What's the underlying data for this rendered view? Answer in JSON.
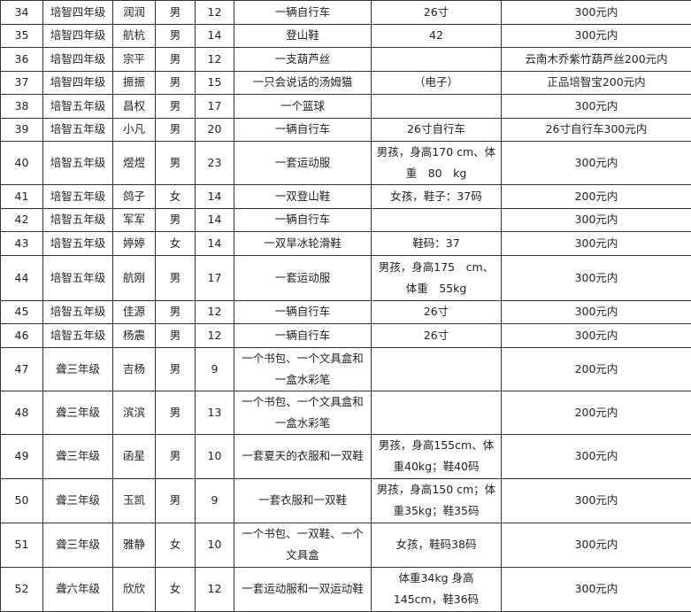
{
  "rows": [
    {
      "no": "34",
      "grade": "培智四年级",
      "name": "润润",
      "sex": "男",
      "age": "12",
      "wish": "一辆自行车",
      "note": "26寸",
      "budget": "300元内"
    },
    {
      "no": "35",
      "grade": "培智四年级",
      "name": "航杭",
      "sex": "男",
      "age": "14",
      "wish": "登山鞋",
      "note": "42",
      "budget": "300元内"
    },
    {
      "no": "36",
      "grade": "培智四年级",
      "name": "宗平",
      "sex": "男",
      "age": "12",
      "wish": "一支葫芦丝",
      "note": "",
      "budget": "云南木乔紫竹葫芦丝200元内"
    },
    {
      "no": "37",
      "grade": "培智四年级",
      "name": "振振",
      "sex": "男",
      "age": "15",
      "wish": "一只会说话的汤姆猫",
      "note": "（电子）",
      "budget": "正品培智宝200元内"
    },
    {
      "no": "38",
      "grade": "培智五年级",
      "name": "昌权",
      "sex": "男",
      "age": "17",
      "wish": "一个篮球",
      "note": "",
      "budget": "300元内"
    },
    {
      "no": "39",
      "grade": "培智五年级",
      "name": "小凡",
      "sex": "男",
      "age": "20",
      "wish": "一辆自行车",
      "note": "26寸自行车",
      "budget": "26寸自行车300元内"
    },
    {
      "no": "40",
      "grade": "培智五年级",
      "name": "煜煜",
      "sex": "男",
      "age": "23",
      "wish": "一套运动服",
      "note": "男孩，身高170 cm、体重　80　kg",
      "budget": "300元内",
      "h": 48
    },
    {
      "no": "41",
      "grade": "培智五年级",
      "name": "鸽子",
      "sex": "女",
      "age": "14",
      "wish": "一双登山鞋",
      "note": "女孩，鞋子：37码",
      "budget": "200元内"
    },
    {
      "no": "42",
      "grade": "培智五年级",
      "name": "军军",
      "sex": "男",
      "age": "14",
      "wish": "一辆自行车",
      "note": "",
      "budget": "300元内"
    },
    {
      "no": "43",
      "grade": "培智五年级",
      "name": "婷婷",
      "sex": "女",
      "age": "14",
      "wish": "一双旱冰轮滑鞋",
      "note": "鞋码：37",
      "budget": "300元内"
    },
    {
      "no": "44",
      "grade": "培智五年级",
      "name": "航刚",
      "sex": "男",
      "age": "17",
      "wish": "一套运动服",
      "note": "男孩，身高175　cm、体重　55kg",
      "budget": "300元内",
      "h": 51
    },
    {
      "no": "45",
      "grade": "培智五年级",
      "name": "佳源",
      "sex": "男",
      "age": "12",
      "wish": "一辆自行车",
      "note": "26寸",
      "budget": "300元内"
    },
    {
      "no": "46",
      "grade": "培智五年级",
      "name": "杨震",
      "sex": "男",
      "age": "12",
      "wish": "一辆自行车",
      "note": "26寸",
      "budget": "300元内"
    },
    {
      "no": "47",
      "grade": "聋三年级",
      "name": "吉杨",
      "sex": "男",
      "age": "9",
      "wish": "一个书包、一个文具盒和一盒水彩笔",
      "note": "",
      "budget": "200元内",
      "h": 49
    },
    {
      "no": "48",
      "grade": "聋三年级",
      "name": "滨滨",
      "sex": "男",
      "age": "13",
      "wish": "一个书包、一个文具盒和一盒水彩笔",
      "note": "",
      "budget": "200元内",
      "h": 48
    },
    {
      "no": "49",
      "grade": "聋三年级",
      "name": "函星",
      "sex": "男",
      "age": "10",
      "wish": "一套夏天的衣服和一双鞋",
      "note": "男孩，身高155cm、体重40kg；鞋40码",
      "budget": "300元内",
      "h": 50
    },
    {
      "no": "50",
      "grade": "聋三年级",
      "name": "玉凯",
      "sex": "男",
      "age": "9",
      "wish": "一套衣服和一双鞋",
      "note": "男孩，身高150 cm；体重35kg；鞋35码",
      "budget": "300元内",
      "h": 50
    },
    {
      "no": "51",
      "grade": "聋三年级",
      "name": "雅静",
      "sex": "女",
      "age": "10",
      "wish": "一个书包、一双鞋、一个文具盒",
      "note": "女孩，鞋码38码",
      "budget": "300元内",
      "h": 50
    },
    {
      "no": "52",
      "grade": "聋六年级",
      "name": "欣欣",
      "sex": "女",
      "age": "12",
      "wish": "一套运动服和一双运动鞋",
      "note": "体重34kg 身高145cm，鞋36码",
      "budget": "300元内",
      "h": 50
    }
  ]
}
